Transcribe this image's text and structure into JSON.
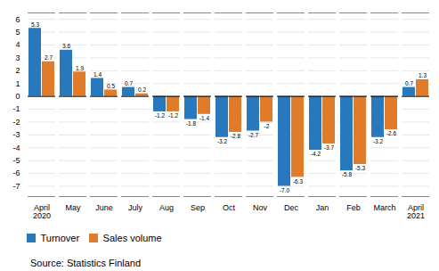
{
  "chart_data": {
    "type": "bar",
    "categories": [
      "April\n2020",
      "May",
      "June",
      "July",
      "Aug",
      "Sep",
      "Oct",
      "Nov",
      "Dec",
      "Jan",
      "Feb",
      "March",
      "April\n2021"
    ],
    "series": [
      {
        "name": "Turnover",
        "color": "#2878bd",
        "values": [
          5.3,
          3.6,
          1.4,
          0.7,
          -1.2,
          -1.8,
          -3.2,
          -2.7,
          -7.0,
          -4.2,
          -5.8,
          -3.2,
          0.7
        ],
        "value_labels": [
          "5.3",
          "3.6",
          "1.4",
          "0.7",
          "-1.2",
          "-1.8",
          "-3.2",
          "-2.7",
          "-7.0",
          "-4.2",
          "-5.8",
          "-3.2",
          "0.7"
        ]
      },
      {
        "name": "Sales volume",
        "color": "#e07b2a",
        "values": [
          2.7,
          1.9,
          0.5,
          0.2,
          -1.2,
          -1.4,
          -2.8,
          -2.0,
          -6.3,
          -3.7,
          -5.3,
          -2.6,
          1.3
        ]
      }
    ],
    "ylim": [
      -7.8,
      6.5
    ],
    "yticks": [
      -7,
      -6,
      -5,
      -4,
      -3,
      -2,
      -1,
      0,
      1,
      2,
      3,
      4,
      5,
      6
    ],
    "grid": true,
    "legend": "lower left",
    "data_labels": true,
    "caption": "Source: Statistics Finland"
  }
}
